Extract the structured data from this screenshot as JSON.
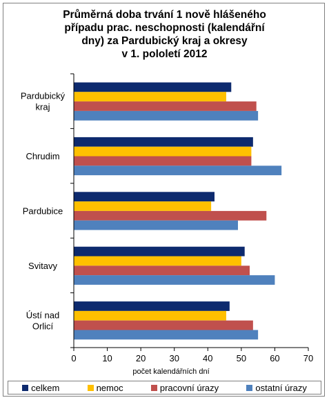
{
  "chart_data": {
    "type": "bar",
    "orientation": "horizontal",
    "title_lines": [
      "Průměrná doba trvání  1 nově hlášeného",
      "případu prac. neschopnosti  (kalendářní",
      "dny) za Pardubický  kraj  a okresy",
      "v 1. pololetí 2012"
    ],
    "categories": [
      "Pardubický kraj",
      "Chrudim",
      "Pardubice",
      "Svitavy",
      "Ústí nad Orlicí"
    ],
    "category_lines": [
      [
        "Pardubický",
        "kraj"
      ],
      [
        "Chrudim"
      ],
      [
        "Pardubice"
      ],
      [
        "Svitavy"
      ],
      [
        "Ústí nad",
        "Orlicí"
      ]
    ],
    "series": [
      {
        "name": "celkem",
        "color": "#0d2a6e",
        "values": [
          47,
          53.5,
          42,
          51,
          46.5
        ]
      },
      {
        "name": "nemoc",
        "color": "#ffc000",
        "values": [
          45.5,
          53,
          41,
          50,
          45.5
        ]
      },
      {
        "name": "pracovní úrazy",
        "color": "#c0504d",
        "values": [
          54.5,
          53,
          57.5,
          52.5,
          53.5
        ]
      },
      {
        "name": "ostatní úrazy",
        "color": "#4f81bd",
        "values": [
          55,
          62,
          49,
          60,
          55
        ]
      }
    ],
    "xlabel": "počet kalendářních dní",
    "xlim": [
      0,
      70
    ],
    "xticks": [
      0,
      10,
      20,
      30,
      40,
      50,
      60,
      70
    ],
    "gridlines": false,
    "legend_position": "bottom"
  }
}
